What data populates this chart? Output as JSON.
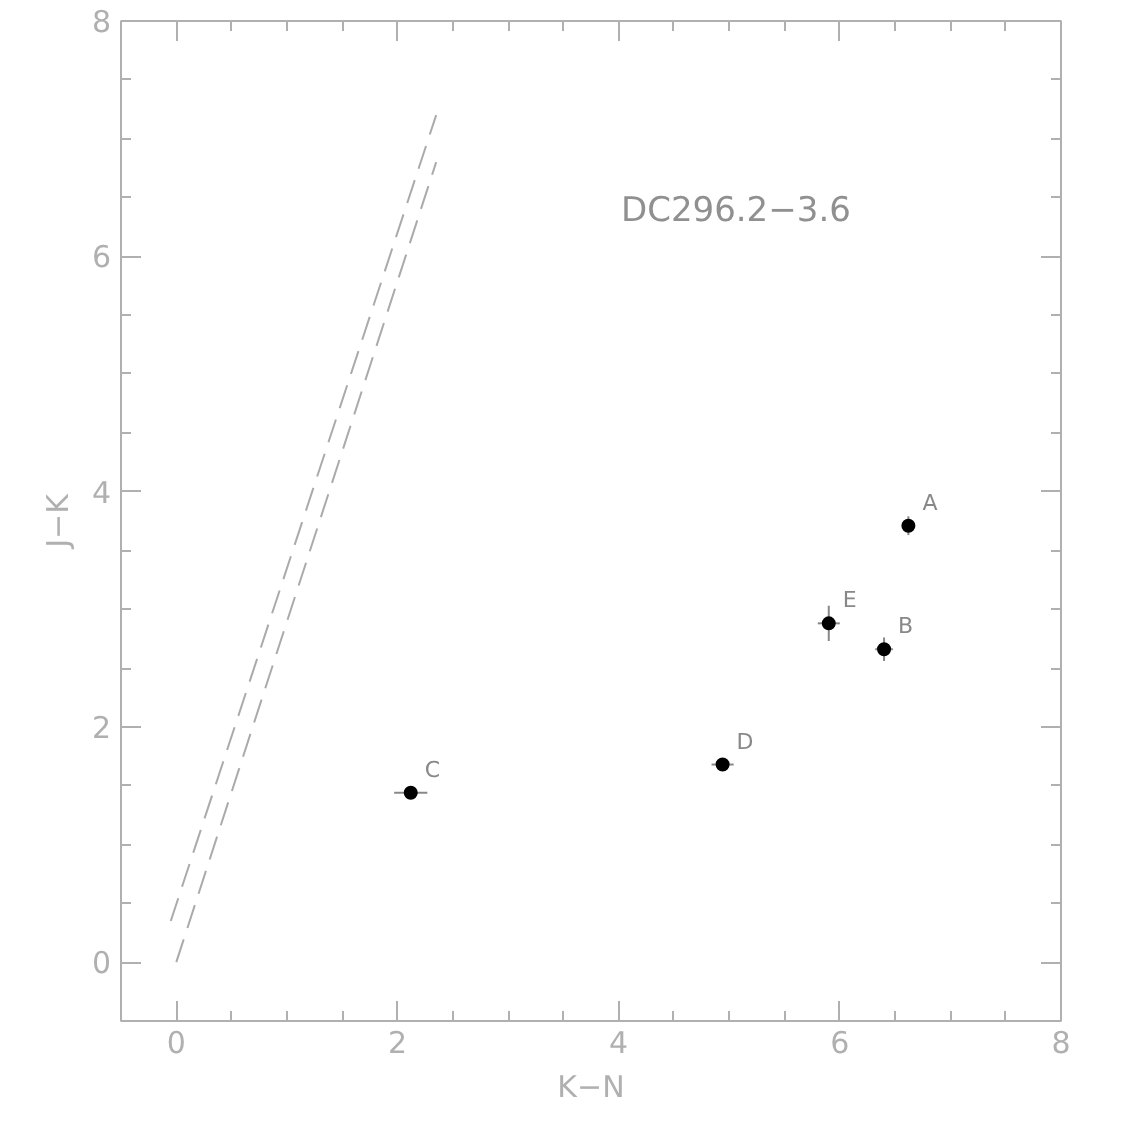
{
  "chart_data": {
    "type": "scatter",
    "xlabel": "K−N",
    "ylabel": "J−K",
    "xlim": [
      -0.5,
      8
    ],
    "ylim": [
      -0.5,
      8
    ],
    "xticks": [
      0,
      2,
      4,
      6,
      8
    ],
    "yticks": [
      0,
      2,
      4,
      6,
      8
    ],
    "grid": false,
    "series": [
      {
        "marker": "circle",
        "color": "#000000",
        "x": [
          6.62,
          6.4,
          2.12,
          4.94,
          5.9
        ],
        "values": [
          3.71,
          2.66,
          1.44,
          1.68,
          2.88
        ],
        "errors": [
          0.08,
          0.1,
          0.05,
          0.05,
          0.15
        ],
        "xerrors": [
          0.05,
          0.08,
          0.15,
          0.1,
          0.1
        ]
      },
      {
        "type": "line",
        "color": "#aaaaaa",
        "line_style": "dashed",
        "x": [
          0.0,
          2.35
        ],
        "values": [
          0.0,
          6.8
        ]
      },
      {
        "type": "line",
        "color": "#aaaaaa",
        "line_style": "dashed",
        "x": [
          -0.05,
          2.35
        ],
        "values": [
          0.35,
          7.2
        ]
      }
    ],
    "annotations": [
      "DC296.2−3.6",
      {
        "text": "A",
        "x": 6.62,
        "y": 3.71
      },
      {
        "text": "B",
        "x": 6.4,
        "y": 2.66
      },
      {
        "text": "C",
        "x": 2.12,
        "y": 1.44
      },
      {
        "text": "D",
        "x": 4.94,
        "y": 1.68
      },
      {
        "text": "E",
        "x": 5.9,
        "y": 2.88
      }
    ]
  }
}
